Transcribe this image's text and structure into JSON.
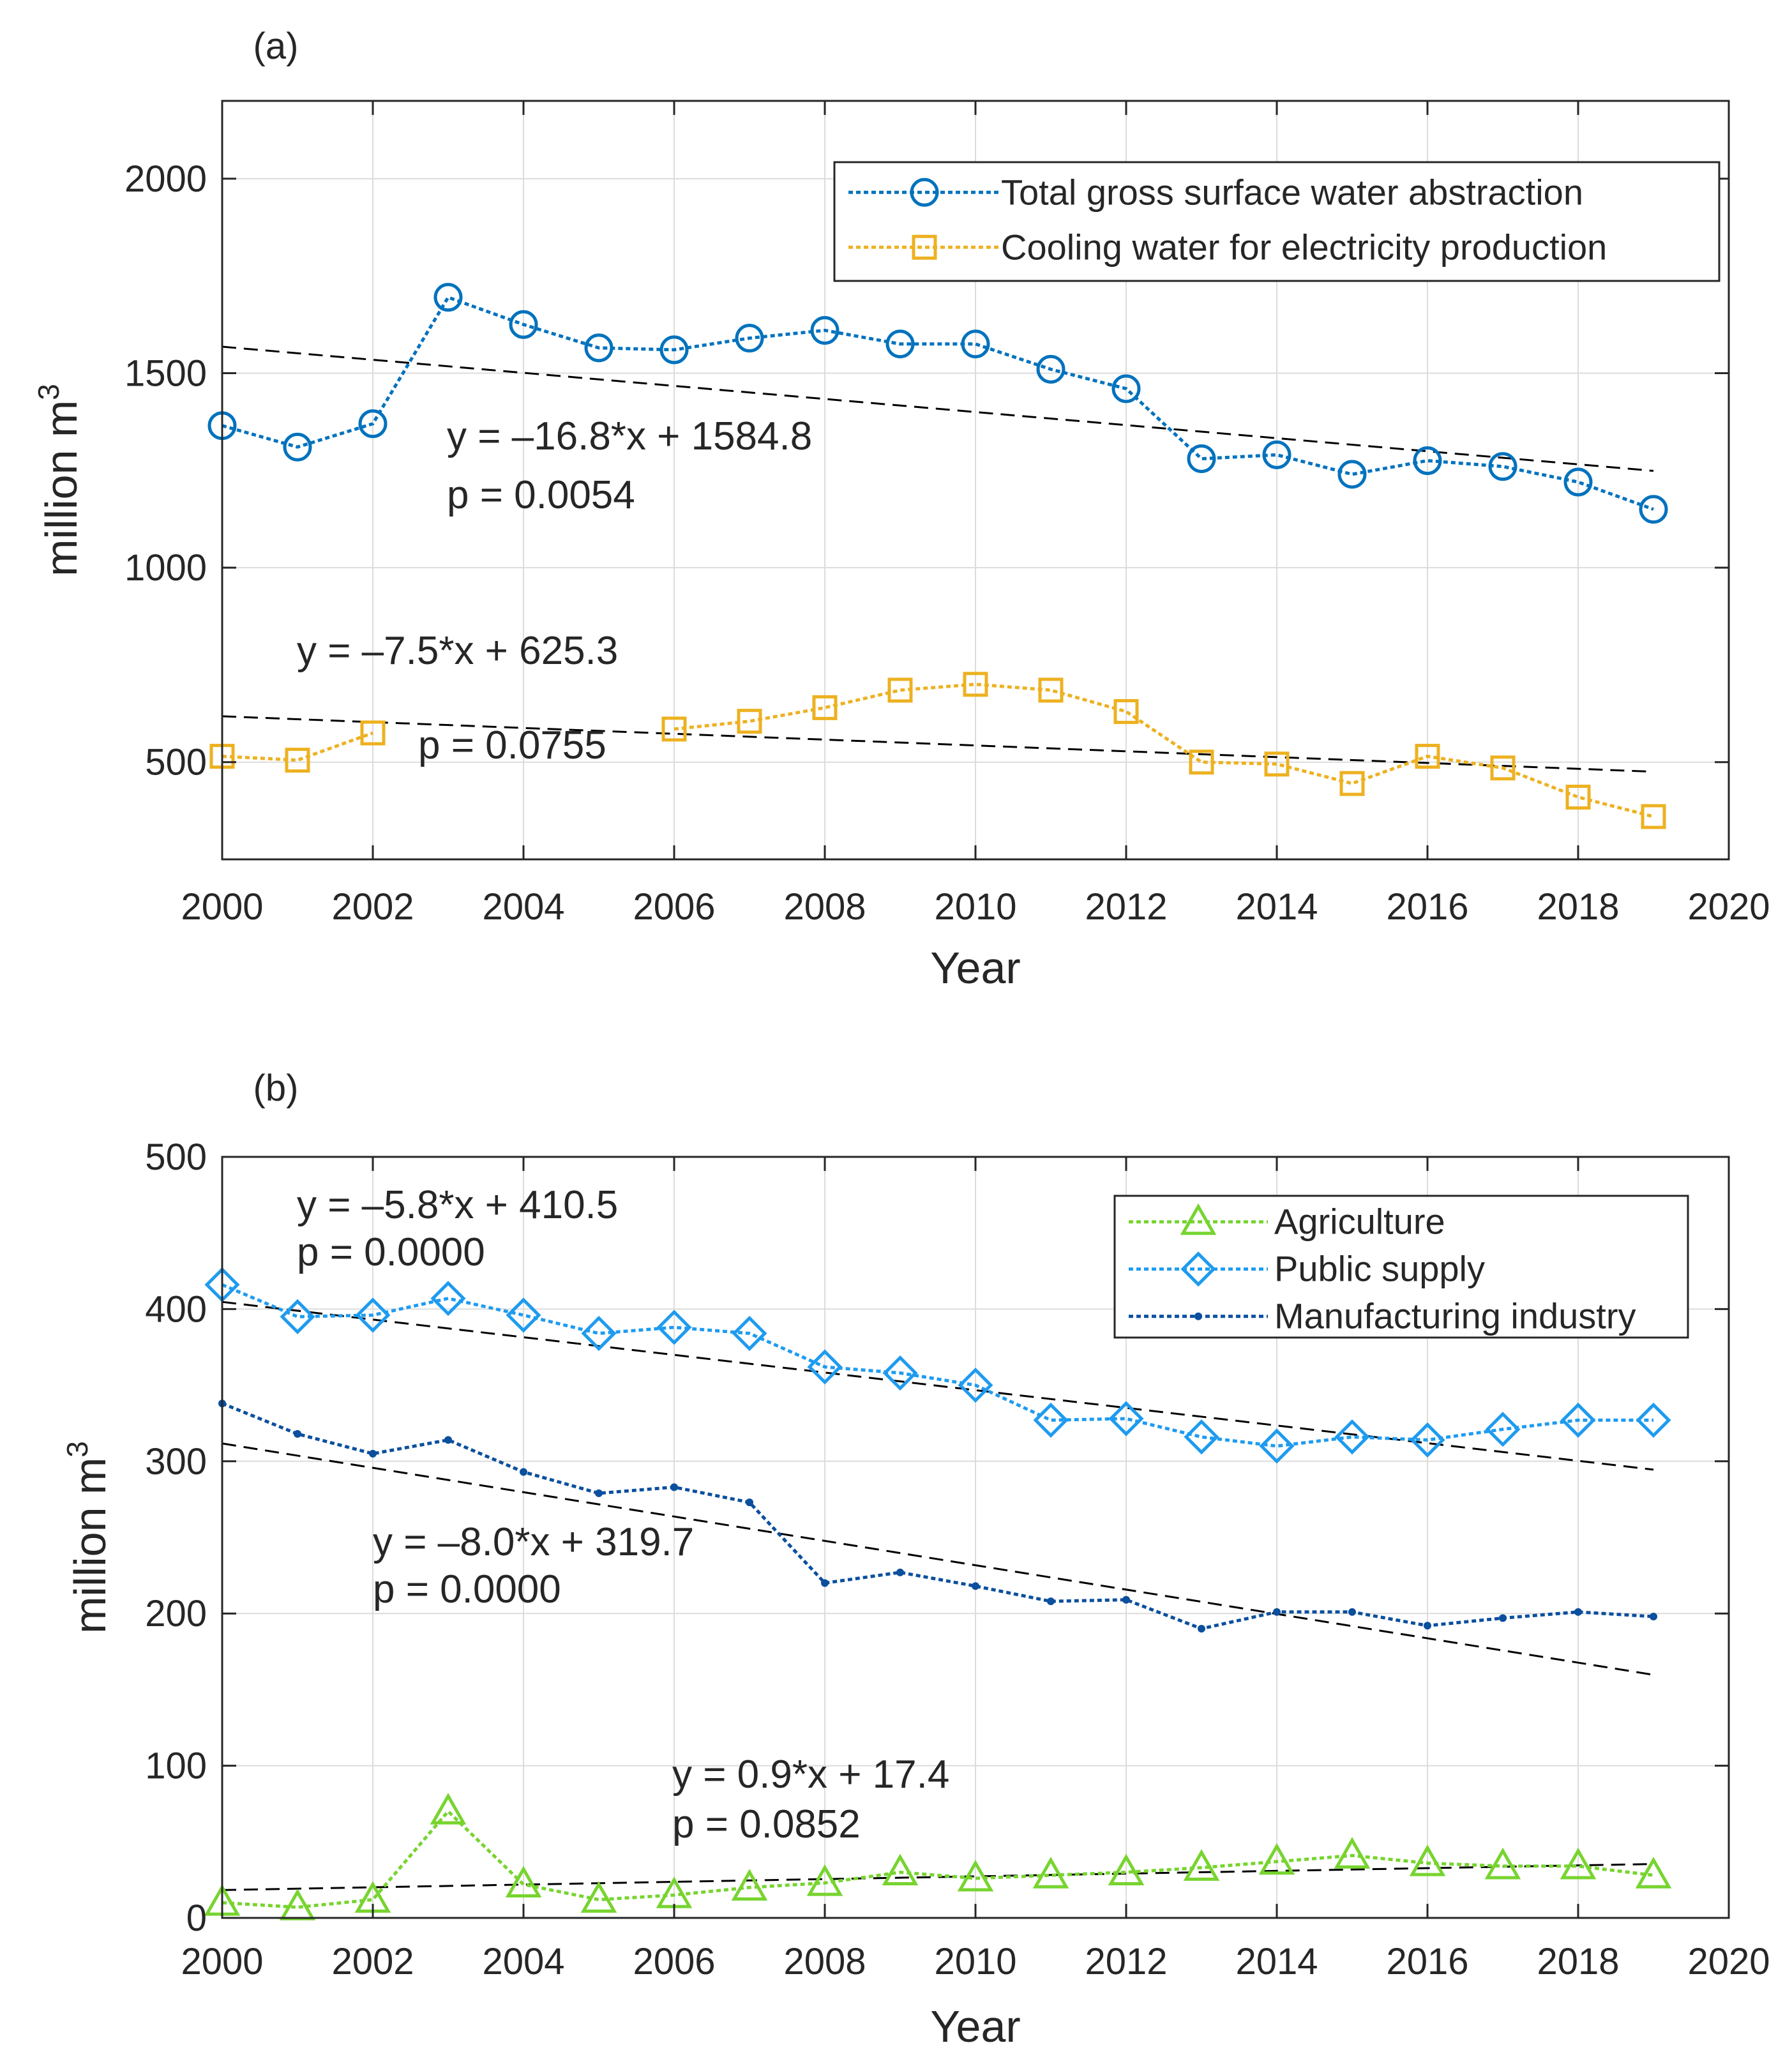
{
  "chart_data": [
    {
      "type": "line",
      "panel_label": "(a)",
      "xlabel": "Year",
      "ylabel": "million m",
      "ylabel_superscript": "3",
      "xlim": [
        2000,
        2020
      ],
      "ylim": [
        250,
        2200
      ],
      "x_ticks": [
        2000,
        2002,
        2004,
        2006,
        2008,
        2010,
        2012,
        2014,
        2016,
        2018,
        2020
      ],
      "y_ticks": [
        500,
        1000,
        1500,
        2000
      ],
      "grid": true,
      "legend_position": "top-right",
      "series": [
        {
          "name": "Total gross surface water abstraction",
          "color": "#0072BD",
          "marker": "circle",
          "x": [
            2000,
            2001,
            2002,
            2003,
            2004,
            2005,
            2006,
            2007,
            2008,
            2009,
            2010,
            2011,
            2012,
            2013,
            2014,
            2015,
            2016,
            2017,
            2018,
            2019
          ],
          "values": [
            1365,
            1310,
            1370,
            1695,
            1625,
            1565,
            1560,
            1590,
            1610,
            1575,
            1575,
            1510,
            1460,
            1280,
            1290,
            1240,
            1275,
            1260,
            1220,
            1150
          ]
        },
        {
          "name": "Cooling water for electricity production",
          "color": "#EDB120",
          "marker": "square",
          "x": [
            2000,
            2001,
            2002,
            2003,
            2004,
            2005,
            2006,
            2007,
            2008,
            2009,
            2010,
            2011,
            2012,
            2013,
            2014,
            2015,
            2016,
            2017,
            2018,
            2019
          ],
          "values": [
            515,
            505,
            575,
            null,
            null,
            null,
            585,
            605,
            640,
            685,
            700,
            685,
            630,
            500,
            495,
            445,
            515,
            485,
            410,
            360
          ]
        }
      ],
      "trends": [
        {
          "equation": "y = –16.8*x + 1584.8",
          "p": "p = 0.0054",
          "slope": -16.8,
          "intercept": 1584.8
        },
        {
          "equation": "y = –7.5*x + 625.3",
          "p": "p = 0.0755",
          "slope": -7.5,
          "intercept": 625.3
        }
      ]
    },
    {
      "type": "line",
      "panel_label": "(b)",
      "xlabel": "Year",
      "ylabel": "million m",
      "ylabel_superscript": "3",
      "xlim": [
        2000,
        2020
      ],
      "ylim": [
        0,
        500
      ],
      "x_ticks": [
        2000,
        2002,
        2004,
        2006,
        2008,
        2010,
        2012,
        2014,
        2016,
        2018,
        2020
      ],
      "y_ticks": [
        0,
        100,
        200,
        300,
        400,
        500
      ],
      "grid": true,
      "legend_position": "top-right",
      "series": [
        {
          "name": "Agriculture",
          "color": "#77D42F",
          "marker": "triangle",
          "x": [
            2000,
            2001,
            2002,
            2003,
            2004,
            2005,
            2006,
            2007,
            2008,
            2009,
            2010,
            2011,
            2012,
            2013,
            2014,
            2015,
            2016,
            2017,
            2018,
            2019
          ],
          "values": [
            10,
            7,
            12,
            70,
            22,
            12,
            15,
            20,
            23,
            30,
            26,
            28,
            30,
            33,
            37,
            41,
            36,
            34,
            34,
            28
          ]
        },
        {
          "name": "Public supply",
          "color": "#1E9BEF",
          "marker": "diamond",
          "x": [
            2000,
            2001,
            2002,
            2003,
            2004,
            2005,
            2006,
            2007,
            2008,
            2009,
            2010,
            2011,
            2012,
            2013,
            2014,
            2015,
            2016,
            2017,
            2018,
            2019
          ],
          "values": [
            416,
            395,
            396,
            407,
            396,
            384,
            388,
            384,
            362,
            358,
            350,
            327,
            328,
            316,
            310,
            316,
            314,
            321,
            327,
            327
          ]
        },
        {
          "name": "Manufacturing industry",
          "color": "#0B4F9E",
          "marker": "dot",
          "x": [
            2000,
            2001,
            2002,
            2003,
            2004,
            2005,
            2006,
            2007,
            2008,
            2009,
            2010,
            2011,
            2012,
            2013,
            2014,
            2015,
            2016,
            2017,
            2018,
            2019
          ],
          "values": [
            338,
            318,
            305,
            314,
            293,
            279,
            283,
            273,
            220,
            227,
            218,
            208,
            209,
            190,
            201,
            201,
            192,
            197,
            201,
            198
          ]
        }
      ],
      "trends": [
        {
          "equation": "y = –5.8*x + 410.5",
          "p": "p = 0.0000",
          "slope": -5.8,
          "intercept": 410.5
        },
        {
          "equation": "y = –8.0*x + 319.7",
          "p": "p = 0.0000",
          "slope": -8.0,
          "intercept": 319.7
        },
        {
          "equation": "y = 0.9*x + 17.4",
          "p": "p = 0.0852",
          "slope": 0.9,
          "intercept": 17.4
        }
      ]
    }
  ]
}
